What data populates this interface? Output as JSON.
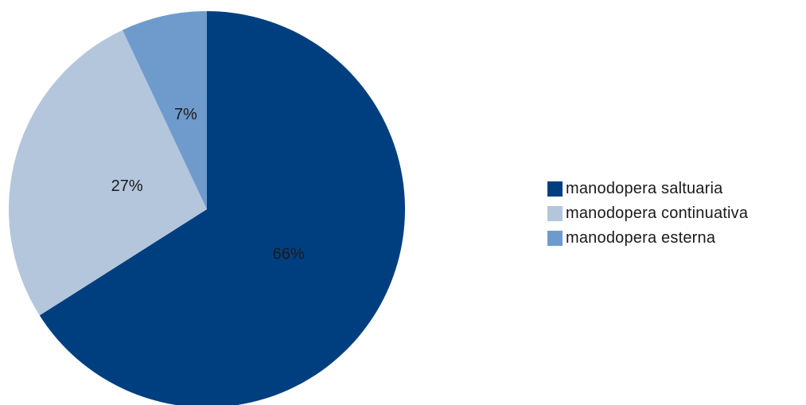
{
  "chart_data": {
    "type": "pie",
    "title": "",
    "start_angle_deg": 0,
    "direction": "clockwise",
    "legend_position": "right",
    "slices": [
      {
        "name": "manodopera saltuaria",
        "value": 66,
        "label": "66%",
        "color": "#003f7f"
      },
      {
        "name": "manodopera continuativa",
        "value": 27,
        "label": "27%",
        "color": "#b4c6dc"
      },
      {
        "name": "manodopera esterna",
        "value": 7,
        "label": "7%",
        "color": "#6f9bcc"
      }
    ]
  }
}
